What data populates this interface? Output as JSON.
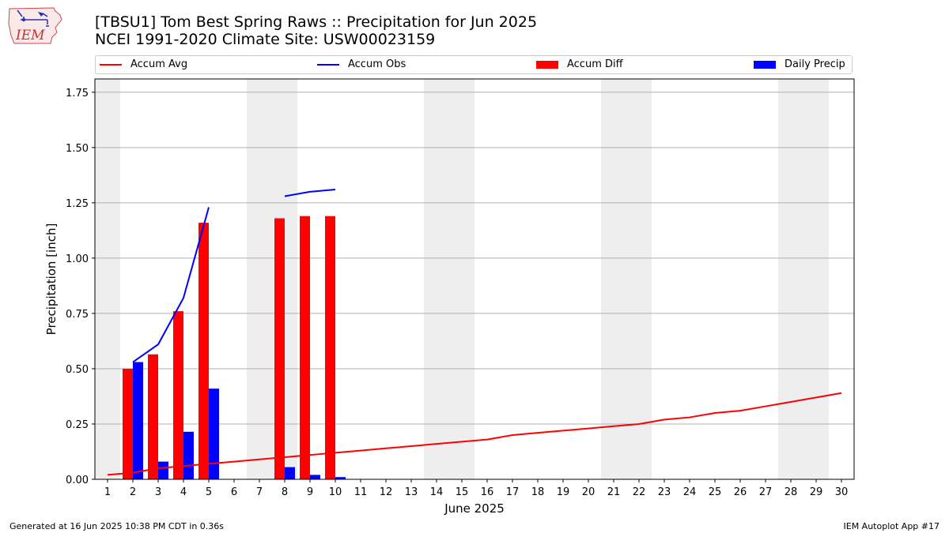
{
  "header": {
    "logo_text": "IEM",
    "title_line1": "[TBSU1] Tom Best Spring Raws :: Precipitation for Jun 2025",
    "title_line2": "NCEI 1991-2020 Climate Site: USW00023159"
  },
  "footer": {
    "generated": "Generated at 16 Jun 2025 10:38 PM CDT in 0.36s",
    "app": "IEM Autoplot App #17"
  },
  "colors": {
    "accum_avg": "#ff0000",
    "accum_obs": "#0000ff",
    "accum_diff": "#ff0000",
    "daily_precip": "#0000ff",
    "weekend_shade": "#eeeeee",
    "grid": "#b0b0b0"
  },
  "chart_data": {
    "type": "bar",
    "xlabel": "June 2025",
    "ylabel": "Precipitation [inch]",
    "ylim": [
      0,
      1.81
    ],
    "yticks": [
      0.0,
      0.25,
      0.5,
      0.75,
      1.0,
      1.25,
      1.5,
      1.75
    ],
    "ytick_labels": [
      "0.00",
      "0.25",
      "0.50",
      "0.75",
      "1.00",
      "1.25",
      "1.50",
      "1.75"
    ],
    "days": [
      1,
      2,
      3,
      4,
      5,
      6,
      7,
      8,
      9,
      10,
      11,
      12,
      13,
      14,
      15,
      16,
      17,
      18,
      19,
      20,
      21,
      22,
      23,
      24,
      25,
      26,
      27,
      28,
      29,
      30
    ],
    "weekend_days": [
      1,
      7,
      8,
      14,
      15,
      21,
      22,
      28,
      29
    ],
    "grid": "horizontal",
    "legend_position": "top",
    "legend": [
      "Accum Avg",
      "Accum Obs",
      "Accum Diff",
      "Daily Precip"
    ],
    "accum_avg": {
      "name": "Accum Avg",
      "x": [
        1,
        2,
        3,
        4,
        5,
        6,
        7,
        8,
        9,
        10,
        11,
        12,
        13,
        14,
        15,
        16,
        17,
        18,
        19,
        20,
        21,
        22,
        23,
        24,
        25,
        26,
        27,
        28,
        29,
        30
      ],
      "values": [
        0.02,
        0.03,
        0.05,
        0.06,
        0.07,
        0.08,
        0.09,
        0.1,
        0.11,
        0.12,
        0.13,
        0.14,
        0.15,
        0.16,
        0.17,
        0.18,
        0.2,
        0.21,
        0.22,
        0.23,
        0.24,
        0.25,
        0.27,
        0.28,
        0.3,
        0.31,
        0.33,
        0.35,
        0.37,
        0.39
      ]
    },
    "accum_obs": [
      {
        "name": "Accum Obs",
        "x": [
          2,
          3,
          4,
          5
        ],
        "values": [
          0.53,
          0.61,
          0.82,
          1.23
        ]
      },
      {
        "name": "Accum Obs",
        "x": [
          8,
          9,
          10
        ],
        "values": [
          1.28,
          1.3,
          1.31
        ]
      }
    ],
    "accum_diff": {
      "name": "Accum Diff",
      "x": [
        2,
        3,
        4,
        5,
        8,
        9,
        10
      ],
      "values": [
        0.5,
        0.565,
        0.76,
        1.16,
        1.18,
        1.19,
        1.19
      ]
    },
    "daily_precip": {
      "name": "Daily Precip",
      "x": [
        2,
        3,
        4,
        5,
        8,
        9,
        10
      ],
      "values": [
        0.53,
        0.08,
        0.215,
        0.41,
        0.055,
        0.02,
        0.01
      ]
    }
  }
}
